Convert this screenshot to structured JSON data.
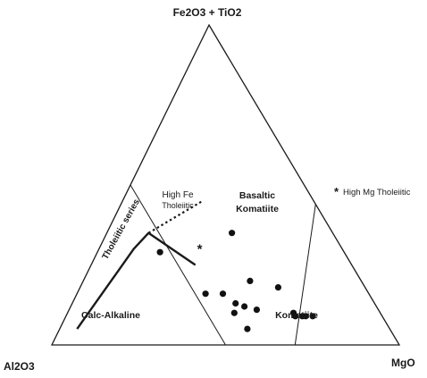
{
  "chart_data": {
    "type": "scatter",
    "subtype": "ternary",
    "apices": {
      "top": "Fe2O3 + TiO2",
      "left": "Al2O3",
      "right": "MgO"
    },
    "apex_coords": {
      "top": [
        0,
        1,
        0
      ],
      "left": [
        1,
        0,
        0
      ],
      "right": [
        0,
        0,
        1
      ]
    },
    "field_labels": {
      "tholeiitic_series": "Tholeiitic series",
      "high_fe_tholeiitic_line1": "High Fe",
      "high_fe_tholeiitic_line2": "Tholeiitic",
      "basaltic_komatiite_line1": "Basaltic",
      "basaltic_komatiite_line2": "Komatiite",
      "calc_alkaline": "Calc-Alkaline",
      "komatiite": "Komatiite",
      "high_mg_tholeiitic": "High Mg Tholeiitic"
    },
    "legend": {
      "marker": "*",
      "label": "High Mg Tholeiitic",
      "placement": "right"
    },
    "boundaries": {
      "calc_alkaline_tholeiitic": [
        [
          0.9,
          0.05,
          0.05
        ],
        [
          0.6,
          0.3,
          0.1
        ],
        [
          0.53,
          0.35,
          0.12
        ],
        [
          0.45,
          0.25,
          0.3
        ]
      ],
      "tholeiitic_extension_dotted": [
        [
          0.53,
          0.35,
          0.12
        ],
        [
          0.32,
          0.45,
          0.23
        ]
      ],
      "high_fe_basaltic_komatiite": [
        [
          0.5,
          0.5,
          0.0
        ],
        [
          0.5,
          0.0,
          0.5
        ]
      ],
      "basaltic_komatiite_komatiite": [
        [
          0.3,
          0.0,
          0.7
        ],
        [
          0.0,
          0.44,
          0.56
        ]
      ]
    },
    "points": [
      {
        "a": 0.53,
        "b": 0.29,
        "c": 0.18
      },
      {
        "a": 0.47,
        "b": 0.16,
        "c": 0.37
      },
      {
        "a": 0.42,
        "b": 0.16,
        "c": 0.42
      },
      {
        "a": 0.4,
        "b": 0.13,
        "c": 0.47
      },
      {
        "a": 0.38,
        "b": 0.12,
        "c": 0.5
      },
      {
        "a": 0.41,
        "b": 0.05,
        "c": 0.54
      },
      {
        "a": 0.42,
        "b": 0.1,
        "c": 0.48
      },
      {
        "a": 0.35,
        "b": 0.11,
        "c": 0.54
      },
      {
        "a": 0.29,
        "b": 0.35,
        "c": 0.36
      },
      {
        "a": 0.32,
        "b": 0.2,
        "c": 0.48
      },
      {
        "a": 0.25,
        "b": 0.18,
        "c": 0.57
      },
      {
        "a": 0.25,
        "b": 0.1,
        "c": 0.65
      },
      {
        "a": 0.25,
        "b": 0.09,
        "c": 0.66
      },
      {
        "a": 0.23,
        "b": 0.09,
        "c": 0.68
      },
      {
        "a": 0.22,
        "b": 0.09,
        "c": 0.69
      },
      {
        "a": 0.2,
        "b": 0.09,
        "c": 0.71
      }
    ],
    "special_points": [
      {
        "a": 0.41,
        "b": 0.3,
        "c": 0.29,
        "marker": "*"
      }
    ],
    "grid": false
  }
}
